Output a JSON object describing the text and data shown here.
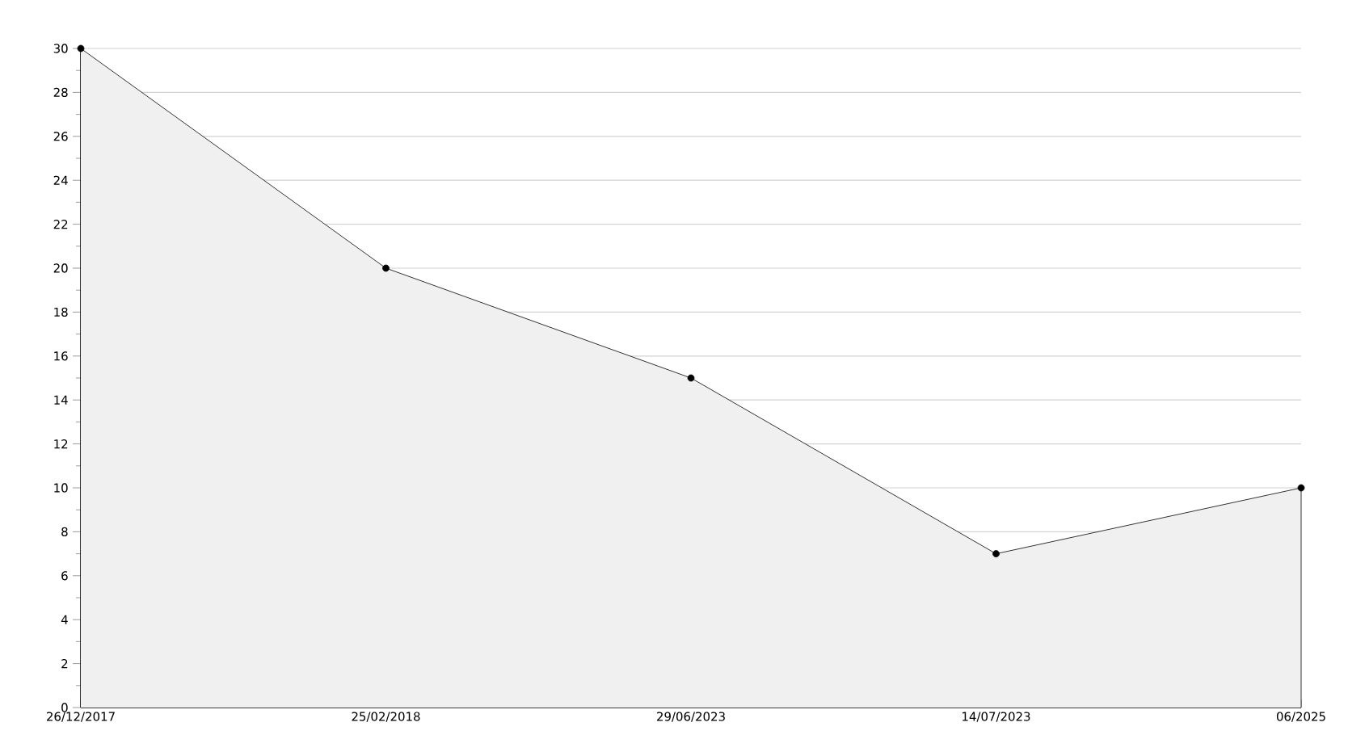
{
  "chart_data": {
    "type": "area",
    "categories": [
      "26/12/2017",
      "25/02/2018",
      "29/06/2023",
      "14/07/2023",
      "06/2025"
    ],
    "values": [
      30,
      20,
      15,
      7,
      10
    ],
    "color": "#000000",
    "ylim": [
      0,
      30
    ],
    "yticks": [
      0,
      2,
      4,
      6,
      8,
      10,
      12,
      14,
      16,
      18,
      20,
      22,
      24,
      26,
      28,
      30
    ],
    "grid": "y",
    "marker": "circle",
    "line_style": "solid"
  }
}
